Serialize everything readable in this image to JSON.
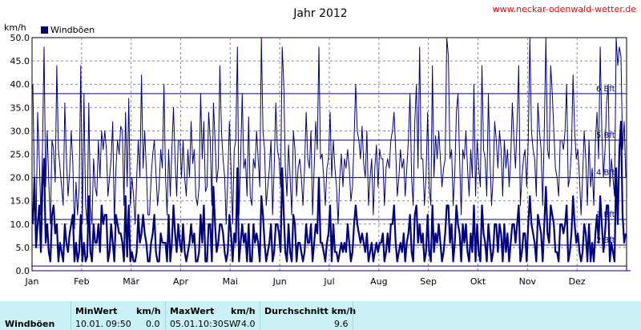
{
  "chart_data": {
    "type": "line",
    "title": "Jahr 2012",
    "source_link": "www.neckar-odenwald-wetter.de",
    "ylabel": "km/h",
    "ylim": [
      0,
      50
    ],
    "y_ticks": [
      "0.0",
      "5.0",
      "10.0",
      "15.0",
      "20.0",
      "25.0",
      "30.0",
      "35.0",
      "40.0",
      "45.0",
      "50.0"
    ],
    "months": [
      "Jan",
      "Feb",
      "Mär",
      "Apr",
      "Mai",
      "Jun",
      "Jul",
      "Aug",
      "Sep",
      "Okt",
      "Nov",
      "Dez"
    ],
    "grid": true,
    "legend": {
      "position": "top-left",
      "entries": [
        "Windböen"
      ]
    },
    "beaufort_lines": [
      {
        "label": "1 Bft",
        "value": 1
      },
      {
        "label": "2 Bft",
        "value": 5.5
      },
      {
        "label": "3 Bft",
        "value": 11
      },
      {
        "label": "4 Bft",
        "value": 20
      },
      {
        "label": "5 Bft",
        "value": 28
      },
      {
        "label": "6 Bft",
        "value": 38
      }
    ],
    "series": [
      {
        "name": "Windböen",
        "color": "#000080",
        "values_max": [
          40,
          18,
          8,
          34,
          24,
          12,
          26,
          48,
          18,
          30,
          19,
          10,
          28,
          26,
          19,
          44,
          26,
          22,
          18,
          14,
          36,
          24,
          16,
          21,
          30,
          23,
          9,
          19,
          12,
          18,
          44,
          10,
          38,
          14,
          10,
          36,
          14,
          10,
          24,
          18,
          16,
          28,
          20,
          30,
          26,
          30,
          26,
          16,
          20,
          24,
          32,
          10,
          22,
          28,
          25,
          31,
          30,
          14,
          34,
          18,
          37,
          14,
          20,
          16,
          10,
          20,
          28,
          20,
          42,
          22,
          30,
          22,
          12,
          12,
          20,
          25,
          28,
          21,
          14,
          18,
          26,
          22,
          40,
          20,
          12,
          26,
          16,
          26,
          35,
          24,
          16,
          28,
          28,
          20,
          28,
          20,
          16,
          26,
          20,
          32,
          23,
          26,
          16,
          14,
          18,
          38,
          24,
          32,
          17,
          18,
          34,
          28,
          14,
          36,
          28,
          19,
          22,
          44,
          30,
          24,
          20,
          10,
          20,
          32,
          22,
          10,
          26,
          28,
          48,
          12,
          24,
          38,
          22,
          24,
          16,
          33,
          16,
          14,
          24,
          22,
          30,
          24,
          18,
          50,
          30,
          26,
          14,
          18,
          22,
          28,
          12,
          22,
          36,
          26,
          24,
          18,
          48,
          40,
          22,
          16,
          27,
          20,
          12,
          30,
          26,
          16,
          22,
          24,
          20,
          14,
          22,
          34,
          24,
          22,
          30,
          12,
          22,
          32,
          26,
          48,
          24,
          25,
          20,
          14,
          22,
          24,
          34,
          20,
          28,
          22,
          18,
          10,
          20,
          25,
          18,
          24,
          22,
          26,
          22,
          15,
          18,
          28,
          40,
          30,
          28,
          24,
          31,
          23,
          20,
          30,
          14,
          20,
          24,
          12,
          22,
          27,
          18,
          26,
          24,
          24,
          14,
          22,
          24,
          22,
          28,
          30,
          34,
          26,
          16,
          20,
          26,
          22,
          24,
          16,
          22,
          28,
          38,
          20,
          14,
          32,
          40,
          22,
          48,
          24,
          24,
          14,
          20,
          34,
          18,
          14,
          44,
          20,
          29,
          24,
          30,
          24,
          18,
          22,
          24,
          50,
          46,
          24,
          26,
          14,
          21,
          34,
          38,
          24,
          12,
          26,
          24,
          30,
          22,
          16,
          26,
          20,
          40,
          16,
          28,
          22,
          18,
          44,
          26,
          24,
          16,
          38,
          24,
          14,
          20,
          32,
          28,
          22,
          30,
          26,
          16,
          28,
          22,
          26,
          18,
          24,
          36,
          28,
          22,
          32,
          44,
          14,
          20,
          24,
          26,
          18,
          28,
          50,
          30,
          26,
          24,
          16,
          36,
          30,
          26,
          14,
          30,
          50,
          26,
          24,
          44,
          38,
          30,
          22,
          20,
          16,
          28,
          28,
          26,
          30,
          40,
          18,
          20,
          26,
          42,
          30,
          24,
          26,
          20,
          12,
          20,
          30,
          24,
          14,
          28,
          18,
          22,
          14,
          28,
          34,
          24,
          48,
          30,
          20,
          26,
          36,
          40,
          18,
          24,
          20,
          16,
          50,
          44,
          48,
          46,
          26,
          32,
          20
        ],
        "values_avg": [
          10,
          20,
          5,
          10,
          14,
          4,
          18,
          24,
          6,
          10,
          4,
          2,
          12,
          14,
          8,
          10,
          2,
          6,
          4,
          2,
          10,
          6,
          4,
          8,
          10,
          12,
          2,
          6,
          2,
          4,
          12,
          2,
          6,
          2,
          3,
          16,
          4,
          2,
          10,
          6,
          6,
          10,
          4,
          14,
          10,
          12,
          12,
          2,
          4,
          10,
          6,
          2,
          12,
          10,
          8,
          8,
          6,
          2,
          16,
          3,
          14,
          2,
          4,
          2,
          2,
          4,
          12,
          6,
          8,
          12,
          8,
          6,
          2,
          2,
          6,
          8,
          12,
          4,
          2,
          2,
          8,
          6,
          6,
          6,
          2,
          12,
          2,
          6,
          14,
          8,
          4,
          10,
          6,
          4,
          10,
          4,
          2,
          4,
          6,
          10,
          6,
          8,
          2,
          2,
          4,
          12,
          6,
          14,
          2,
          2,
          10,
          10,
          2,
          18,
          10,
          4,
          6,
          10,
          10,
          8,
          4,
          2,
          4,
          12,
          8,
          2,
          8,
          6,
          22,
          2,
          6,
          10,
          6,
          8,
          2,
          10,
          2,
          2,
          10,
          6,
          8,
          6,
          2,
          16,
          12,
          6,
          2,
          4,
          6,
          10,
          2,
          4,
          10,
          10,
          8,
          4,
          22,
          12,
          4,
          2,
          10,
          4,
          2,
          12,
          10,
          2,
          6,
          6,
          4,
          2,
          4,
          10,
          6,
          6,
          10,
          2,
          6,
          10,
          8,
          20,
          6,
          6,
          4,
          2,
          6,
          8,
          14,
          2,
          10,
          4,
          4,
          2,
          4,
          6,
          4,
          6,
          4,
          10,
          6,
          2,
          4,
          10,
          14,
          10,
          8,
          6,
          8,
          6,
          4,
          8,
          2,
          4,
          6,
          2,
          4,
          6,
          4,
          6,
          6,
          8,
          2,
          4,
          8,
          4,
          10,
          10,
          14,
          6,
          2,
          4,
          6,
          4,
          8,
          2,
          6,
          8,
          12,
          4,
          2,
          12,
          14,
          6,
          10,
          6,
          8,
          2,
          4,
          12,
          4,
          2,
          14,
          4,
          8,
          6,
          10,
          6,
          2,
          4,
          8,
          14,
          14,
          6,
          10,
          2,
          6,
          14,
          10,
          8,
          2,
          10,
          6,
          10,
          4,
          2,
          8,
          4,
          14,
          2,
          10,
          4,
          2,
          14,
          8,
          6,
          2,
          10,
          6,
          2,
          4,
          10,
          10,
          4,
          10,
          8,
          2,
          10,
          4,
          8,
          2,
          6,
          10,
          10,
          6,
          10,
          14,
          2,
          4,
          8,
          8,
          2,
          10,
          16,
          10,
          8,
          6,
          2,
          12,
          10,
          8,
          2,
          10,
          18,
          8,
          6,
          14,
          12,
          10,
          4,
          4,
          2,
          10,
          10,
          8,
          10,
          14,
          2,
          4,
          8,
          16,
          10,
          6,
          8,
          4,
          2,
          4,
          10,
          8,
          2,
          10,
          2,
          6,
          2,
          8,
          12,
          6,
          16,
          10,
          4,
          8,
          14,
          14,
          2,
          6,
          4,
          2,
          22,
          10,
          26,
          32,
          12,
          6,
          8
        ],
        "values_min": [
          0,
          0,
          0,
          0,
          0,
          0,
          0,
          0,
          0,
          0,
          0,
          0,
          0,
          0,
          0,
          0,
          0,
          0,
          0,
          0,
          0,
          0,
          0,
          0,
          0,
          0,
          0,
          0,
          0,
          0,
          0,
          0,
          0,
          0,
          0,
          0,
          0,
          0,
          0,
          0,
          0,
          0,
          0,
          0,
          0,
          0,
          0,
          0,
          0,
          0,
          0,
          0,
          0,
          0,
          0,
          0,
          0,
          0,
          0,
          0,
          0,
          0,
          0,
          0,
          0,
          0,
          0,
          0,
          0,
          0,
          0,
          0,
          0,
          0,
          0,
          0,
          0,
          0,
          0,
          0,
          0,
          0,
          0,
          0,
          0,
          0,
          0,
          0,
          0,
          0,
          0,
          0,
          0,
          0,
          0,
          0,
          0,
          0,
          0,
          0,
          0,
          0,
          0,
          0,
          0,
          0,
          0,
          0,
          0,
          0,
          0,
          0,
          0,
          0,
          0,
          0,
          0,
          0,
          0,
          0,
          0,
          0,
          0,
          0,
          0,
          0,
          0,
          0,
          0,
          0,
          0,
          0,
          0,
          0,
          0,
          0,
          0,
          0,
          0,
          0,
          0,
          0,
          0,
          0,
          0,
          0,
          0,
          0,
          0,
          0,
          0,
          0,
          0,
          0,
          0,
          0,
          0,
          0,
          0,
          0,
          0,
          0,
          0,
          0,
          0,
          0,
          0,
          0,
          0,
          0,
          0,
          0,
          0,
          0,
          0,
          0,
          0,
          0,
          0,
          0,
          0,
          0,
          0,
          0,
          0,
          0,
          0,
          0,
          0,
          0,
          0,
          0,
          0,
          0,
          0,
          0,
          0,
          0,
          0,
          0,
          0,
          0,
          0,
          0,
          0,
          0,
          0,
          0,
          0,
          0,
          0,
          0,
          0,
          0,
          0,
          0,
          0,
          0,
          0,
          0,
          0,
          0,
          0,
          0,
          0,
          0,
          0,
          0,
          0,
          0,
          0,
          0,
          0,
          0,
          0,
          0,
          0,
          0,
          0,
          0,
          0,
          0,
          0,
          0,
          0,
          0,
          0,
          0,
          0,
          0,
          0,
          0,
          0,
          0,
          0,
          0,
          0,
          0,
          0,
          0,
          0,
          0,
          0,
          0,
          0,
          0,
          0,
          0,
          0,
          0,
          0,
          0,
          0,
          0,
          0,
          0,
          0,
          0,
          0,
          0,
          0,
          0,
          0,
          0,
          0,
          0,
          0,
          0,
          0,
          0,
          0,
          0,
          0,
          0,
          0,
          0,
          0,
          0,
          0,
          0,
          0,
          0,
          0,
          0,
          0,
          0,
          0,
          0,
          0,
          0,
          0,
          0,
          0,
          0,
          0,
          0,
          0,
          0,
          0,
          0,
          0,
          0,
          0,
          0,
          0,
          0,
          0,
          0,
          0,
          0,
          0,
          0,
          0,
          0,
          0,
          0,
          0,
          0,
          0,
          0,
          0,
          0,
          0,
          0,
          0,
          0,
          0,
          0,
          0,
          0,
          0,
          0,
          0,
          0,
          0,
          0,
          0,
          0,
          0,
          0,
          0,
          0,
          0,
          0,
          0,
          0,
          0,
          0,
          0,
          0,
          0,
          0,
          0,
          0,
          0
        ]
      }
    ]
  },
  "stats": {
    "row_label": "Windböen",
    "min_header": "MinWert",
    "min_unit": "km/h",
    "min_date": "10.01.",
    "min_time": "09:50",
    "min_value": "0.0",
    "max_header": "MaxWert",
    "max_unit": "km/h",
    "max_date": "05.01.",
    "max_time": "10:30",
    "max_dir": "SW",
    "max_value": "74.0",
    "avg_header": "Durchschnitt km/h",
    "avg_value": "9.6"
  }
}
